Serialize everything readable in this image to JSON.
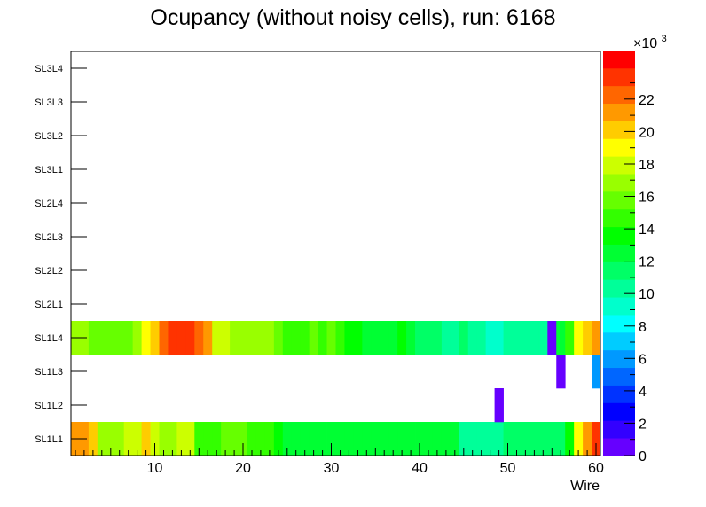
{
  "chart_data": {
    "type": "heatmap",
    "title": "Ocupancy (without noisy cells), run: 6168",
    "xlabel": "Wire",
    "ylabel": "",
    "xlim": [
      0.5,
      60.5
    ],
    "x_ticks": [
      10,
      20,
      30,
      40,
      50,
      60
    ],
    "y_categories": [
      "SL1L1",
      "SL1L2",
      "SL1L3",
      "SL1L4",
      "SL2L1",
      "SL2L2",
      "SL2L3",
      "SL2L4",
      "SL3L1",
      "SL3L2",
      "SL3L3",
      "SL3L4"
    ],
    "zlim": [
      0,
      25000
    ],
    "z_ticks": [
      0,
      2,
      4,
      6,
      8,
      10,
      12,
      14,
      16,
      18,
      20,
      22
    ],
    "z_exponent_label": "×10",
    "z_exponent_power": "3",
    "palette": [
      "#6600ff",
      "#3300ff",
      "#0000ff",
      "#0033ff",
      "#0066ff",
      "#0099ff",
      "#00ccff",
      "#00ffff",
      "#00ffcc",
      "#00ff99",
      "#00ff66",
      "#00ff33",
      "#00ff00",
      "#33ff00",
      "#66ff00",
      "#99ff00",
      "#ccff00",
      "#ffff00",
      "#ffcc00",
      "#ff9900",
      "#ff6600",
      "#ff3300",
      "#ff0000"
    ],
    "rows": {
      "SL1L1": [
        21000,
        21000,
        20000,
        17000,
        17000,
        17000,
        18000,
        18000,
        20000,
        18000,
        17000,
        17000,
        18000,
        18000,
        15000,
        15000,
        15000,
        16000,
        16000,
        16000,
        15000,
        15000,
        15000,
        14000,
        13000,
        13000,
        13000,
        13000,
        13000,
        12000,
        12000,
        12000,
        12000,
        12000,
        12000,
        12000,
        12000,
        12000,
        13000,
        12000,
        12000,
        12000,
        12000,
        12000,
        10000,
        10000,
        10000,
        10000,
        10000,
        11000,
        11000,
        11000,
        11000,
        11000,
        11000,
        11000,
        14000,
        19000,
        21000,
        23000
      ],
      "SL1L2": [
        null,
        null,
        null,
        null,
        null,
        null,
        null,
        null,
        null,
        null,
        null,
        null,
        null,
        null,
        null,
        null,
        null,
        null,
        null,
        null,
        null,
        null,
        null,
        null,
        null,
        null,
        null,
        null,
        null,
        null,
        null,
        null,
        null,
        null,
        null,
        null,
        null,
        null,
        null,
        null,
        null,
        null,
        null,
        null,
        null,
        null,
        null,
        null,
        500,
        null,
        null,
        null,
        null,
        null,
        null,
        null,
        null,
        null,
        null,
        null
      ],
      "SL1L3": [
        null,
        null,
        null,
        null,
        null,
        null,
        null,
        null,
        null,
        null,
        null,
        null,
        null,
        null,
        null,
        null,
        null,
        null,
        null,
        null,
        null,
        null,
        null,
        null,
        null,
        null,
        null,
        null,
        null,
        null,
        null,
        null,
        null,
        null,
        null,
        null,
        null,
        null,
        null,
        null,
        null,
        null,
        null,
        null,
        null,
        null,
        null,
        null,
        null,
        null,
        null,
        null,
        null,
        null,
        null,
        500,
        null,
        null,
        null,
        6000
      ],
      "SL1L4": [
        17000,
        17000,
        16000,
        16000,
        16000,
        16000,
        16000,
        17000,
        19000,
        20000,
        22000,
        23000,
        23000,
        23000,
        22000,
        21000,
        18000,
        18000,
        17000,
        17000,
        17000,
        17000,
        17000,
        16000,
        15000,
        15000,
        15000,
        16000,
        15000,
        16000,
        15000,
        14000,
        14000,
        13000,
        13000,
        13000,
        13000,
        14000,
        12000,
        11000,
        11000,
        11000,
        10000,
        10000,
        11000,
        10000,
        10000,
        9000,
        9000,
        10000,
        10000,
        10000,
        10000,
        10000,
        500,
        13000,
        15000,
        19000,
        20000,
        21000
      ]
    }
  }
}
